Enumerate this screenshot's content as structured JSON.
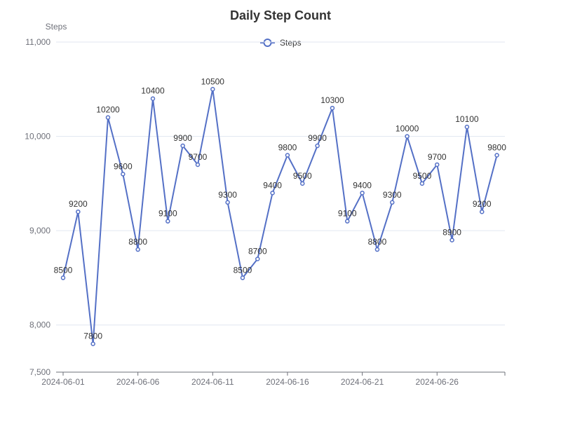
{
  "chart_data": {
    "type": "line",
    "title": "Daily Step Count",
    "ylabel": "Steps",
    "xlabel": "",
    "ylim": [
      7500,
      11000
    ],
    "y_ticks": [
      7500,
      8000,
      9000,
      10000,
      11000
    ],
    "y_tick_labels": [
      "7,500",
      "8,000",
      "9,000",
      "10,000",
      "11,000"
    ],
    "grid": true,
    "legend_position": "top-center",
    "x": [
      "2024-06-01",
      "2024-06-02",
      "2024-06-03",
      "2024-06-04",
      "2024-06-05",
      "2024-06-06",
      "2024-06-07",
      "2024-06-08",
      "2024-06-09",
      "2024-06-10",
      "2024-06-11",
      "2024-06-12",
      "2024-06-13",
      "2024-06-14",
      "2024-06-15",
      "2024-06-16",
      "2024-06-17",
      "2024-06-18",
      "2024-06-19",
      "2024-06-20",
      "2024-06-21",
      "2024-06-22",
      "2024-06-23",
      "2024-06-24",
      "2024-06-25",
      "2024-06-26",
      "2024-06-27",
      "2024-06-28",
      "2024-06-29",
      "2024-06-30"
    ],
    "x_tick_labels": [
      "2024-06-01",
      "2024-06-06",
      "2024-06-11",
      "2024-06-16",
      "2024-06-21",
      "2024-06-26"
    ],
    "series": [
      {
        "name": "Steps",
        "color": "#5470c6",
        "values": [
          8500,
          9200,
          7800,
          10200,
          9600,
          8800,
          10400,
          9100,
          9900,
          9700,
          10500,
          9300,
          8500,
          8700,
          9400,
          9800,
          9500,
          9900,
          10300,
          9100,
          9400,
          8800,
          9300,
          10000,
          9500,
          9700,
          8900,
          10100,
          9200,
          9800
        ]
      }
    ]
  }
}
